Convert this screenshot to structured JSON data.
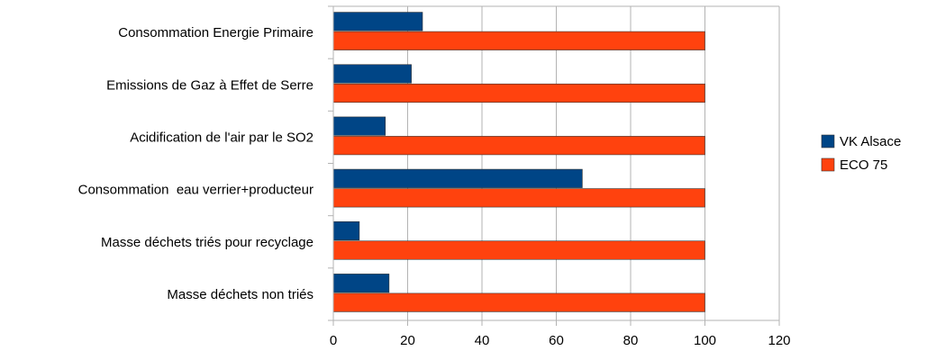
{
  "chart_data": {
    "type": "bar",
    "orientation": "horizontal",
    "title": "",
    "xlabel": "",
    "ylabel": "",
    "categories": [
      "Consommation Energie Primaire",
      "Emissions de Gaz à Effet de Serre",
      "Acidification de l'air par le SO2",
      "Consommation  eau verrier+producteur",
      "Masse déchets triés pour recyclage",
      "Masse déchets non triés"
    ],
    "series": [
      {
        "name": "VK Alsace",
        "color": "#004586",
        "values": [
          24,
          21,
          14,
          67,
          7,
          15
        ]
      },
      {
        "name": "ECO 75",
        "color": "#ff420e",
        "values": [
          100,
          100,
          100,
          100,
          100,
          100
        ]
      }
    ],
    "xlim": [
      0,
      120
    ],
    "xticks": [
      0,
      20,
      40,
      60,
      80,
      100,
      120
    ],
    "grid": true,
    "legend_position": "right"
  }
}
